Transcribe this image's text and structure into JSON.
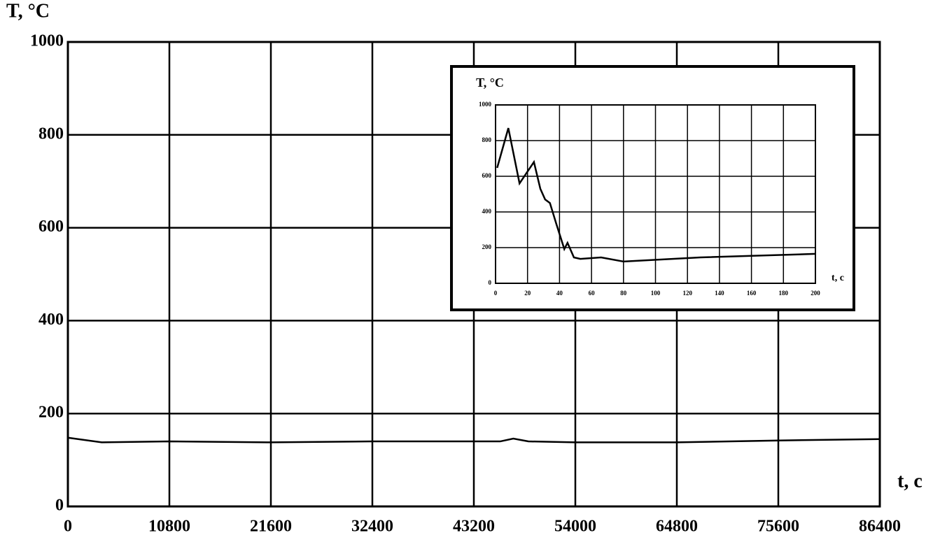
{
  "chart_data": [
    {
      "type": "line",
      "y_label": "T, °C",
      "x_label": "t, c",
      "x": [
        0,
        3600,
        10800,
        21600,
        32400,
        43200,
        46000,
        47400,
        49000,
        54000,
        64800,
        75600,
        86400
      ],
      "values": [
        148,
        138,
        140,
        138,
        140,
        140,
        140,
        146,
        140,
        138,
        138,
        142,
        145
      ],
      "color": "#000000",
      "xlim": [
        0,
        86400
      ],
      "xticks": [
        0,
        10800,
        21600,
        32400,
        43200,
        54000,
        64800,
        75600,
        86400
      ],
      "ylim": [
        0,
        1000
      ],
      "yticks": [
        0,
        200,
        400,
        600,
        800,
        1000
      ],
      "grid": true
    },
    {
      "type": "line",
      "y_label": "T, °C",
      "x_label": "t, c",
      "x": [
        1,
        8,
        15,
        24,
        28,
        31,
        34,
        38,
        43,
        45,
        49,
        53,
        66,
        80,
        128,
        200
      ],
      "values": [
        647,
        870,
        560,
        680,
        530,
        470,
        450,
        333,
        192,
        227,
        145,
        137,
        145,
        122,
        145,
        165
      ],
      "color": "#000000",
      "xlim": [
        0,
        200
      ],
      "xticks": [
        0,
        20,
        40,
        60,
        80,
        100,
        120,
        140,
        160,
        180,
        200
      ],
      "ylim": [
        0,
        1000
      ],
      "yticks": [
        0,
        200,
        400,
        600,
        800,
        1000
      ],
      "grid": true
    }
  ]
}
